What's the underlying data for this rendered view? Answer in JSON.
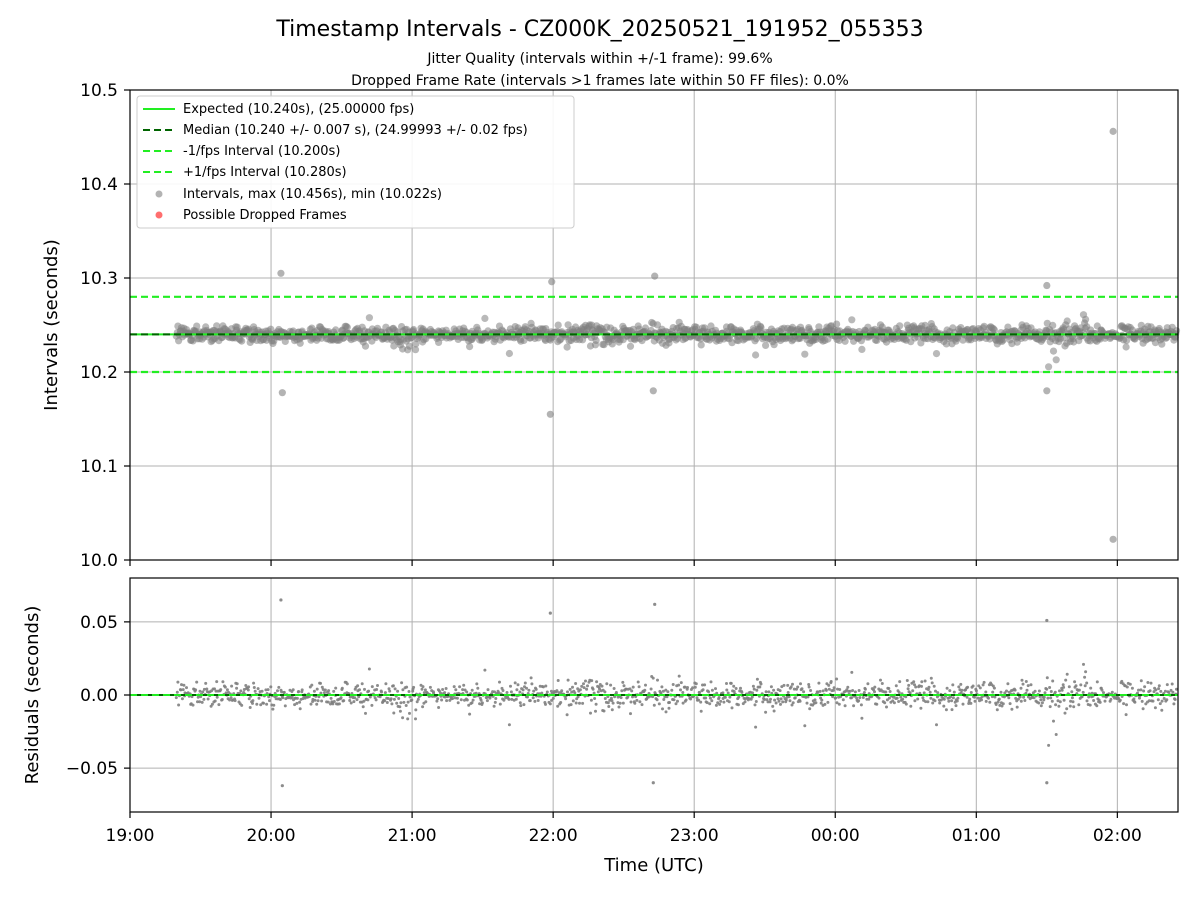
{
  "title": "Timestamp Intervals - CZ000K_20250521_191952_055353",
  "subtitle_1": "Jitter Quality (intervals within +/-1 frame): 99.6%",
  "subtitle_2": "Dropped Frame Rate (intervals >1 frames late within 50 FF files): 0.0%",
  "colors": {
    "expected": "#22ee22",
    "median": "#006400",
    "interval_lines": "#22ee22",
    "points": "#808080",
    "dropped": "#ff5555",
    "grid": "#b0b0b0"
  },
  "chart_data": [
    {
      "type": "scatter",
      "ylabel": "Intervals (seconds)",
      "ylim": [
        10.0,
        10.5
      ],
      "yticks": [
        "10.0",
        "10.1",
        "10.2",
        "10.3",
        "10.4",
        "10.5"
      ],
      "ytick_values": [
        10.0,
        10.1,
        10.2,
        10.3,
        10.4,
        10.5
      ],
      "grid": true,
      "legend_position": "top-left",
      "legend": [
        "Expected (10.240s), (25.00000 fps)",
        "Median (10.240 +/- 0.007 s), (24.99993 +/- 0.02 fps)",
        "-1/fps Interval (10.200s)",
        "+1/fps Interval (10.280s)",
        "Intervals, max (10.456s), min (10.022s)",
        "Possible Dropped Frames"
      ],
      "reference_lines": {
        "expected": 10.24,
        "median": 10.24,
        "minus_one_fps": 10.2,
        "plus_one_fps": 10.28
      },
      "outliers": [
        {
          "t": 20.07,
          "y": 10.305
        },
        {
          "t": 20.08,
          "y": 10.178
        },
        {
          "t": 21.99,
          "y": 10.296
        },
        {
          "t": 21.98,
          "y": 10.155
        },
        {
          "t": 22.72,
          "y": 10.302
        },
        {
          "t": 22.71,
          "y": 10.18
        },
        {
          "t": 25.5,
          "y": 10.292
        },
        {
          "t": 25.5,
          "y": 10.18
        },
        {
          "t": 25.97,
          "y": 10.456
        },
        {
          "t": 25.97,
          "y": 10.022
        }
      ],
      "intervals_time_range_hours": [
        19.33,
        26.42
      ],
      "series": [
        {
          "name": "Intervals",
          "center": 10.24,
          "spread": 0.007
        }
      ]
    },
    {
      "type": "scatter",
      "ylabel": "Residuals (seconds)",
      "xlabel": "Time (UTC)",
      "ylim": [
        -0.08,
        0.08
      ],
      "yticks": [
        "−0.05",
        "0.00",
        "0.05"
      ],
      "ytick_values": [
        -0.05,
        0.0,
        0.05
      ],
      "xlim_hours": [
        19.0,
        26.43
      ],
      "xticks": [
        "19:00",
        "20:00",
        "21:00",
        "22:00",
        "23:00",
        "00:00",
        "01:00",
        "02:00"
      ],
      "xtick_values_hours": [
        19,
        20,
        21,
        22,
        23,
        24,
        25,
        26
      ],
      "grid": true,
      "zero_line": 0.0,
      "outliers": [
        {
          "t": 20.07,
          "y": 0.065
        },
        {
          "t": 20.08,
          "y": -0.062
        },
        {
          "t": 21.98,
          "y": 0.056
        },
        {
          "t": 22.72,
          "y": 0.062
        },
        {
          "t": 22.71,
          "y": -0.06
        },
        {
          "t": 25.5,
          "y": 0.051
        },
        {
          "t": 25.5,
          "y": -0.06
        }
      ]
    }
  ]
}
